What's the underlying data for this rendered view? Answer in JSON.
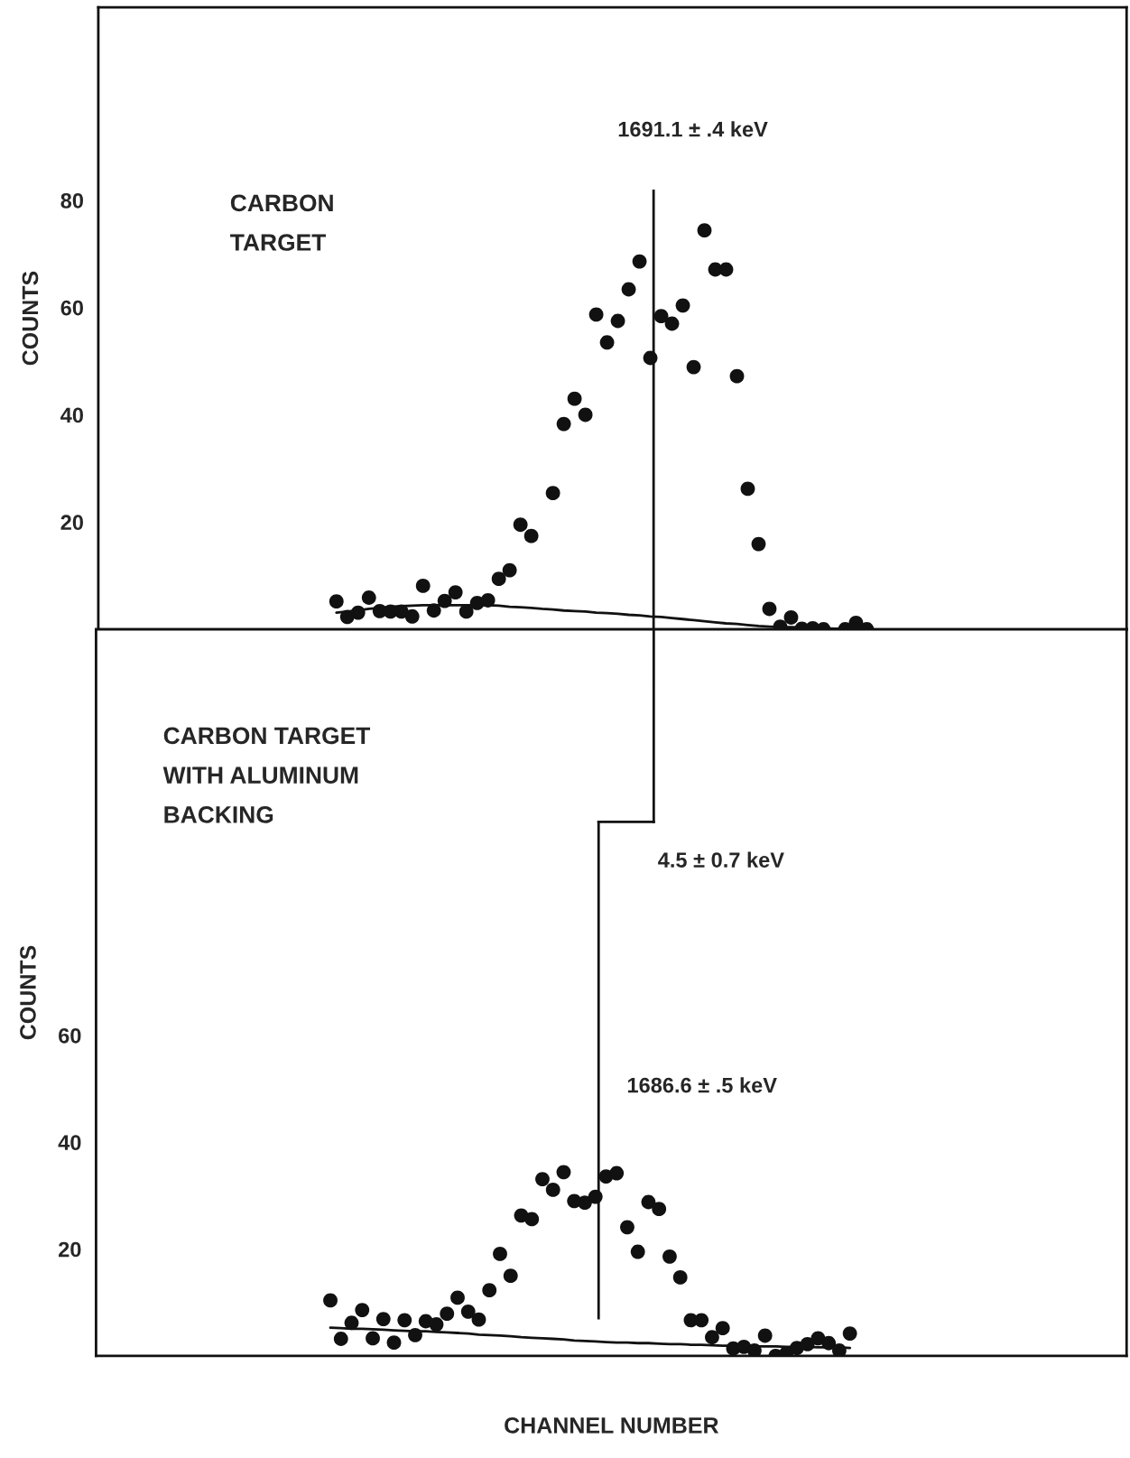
{
  "chart_data": [
    {
      "type": "scatter",
      "title": "CARBON\nTARGET",
      "ylabel": "COUNTS",
      "ylim": [
        0,
        116
      ],
      "yticks": [
        20,
        40,
        60,
        80
      ],
      "marker": "circle",
      "grid": false,
      "categories": [
        null,
        null,
        null,
        null,
        null,
        null,
        null,
        null,
        null,
        null,
        null,
        null,
        null,
        null,
        null,
        null,
        null,
        null,
        null,
        null,
        null,
        null,
        null,
        null,
        null,
        null,
        null,
        null,
        null,
        null,
        null,
        null,
        null,
        null,
        null,
        null,
        null,
        null,
        null,
        null,
        null,
        null,
        null,
        null,
        null,
        null,
        null,
        null,
        null,
        null
      ],
      "series": [
        {
          "color": "#111111",
          "values": [
            5.2,
            2.3,
            3.1,
            5.9,
            3.4,
            3.3,
            3.3,
            2.4,
            8.1,
            3.5,
            5.3,
            6.9,
            3.3,
            4.9,
            5.4,
            9.4,
            11.0,
            19.5,
            17.4,
            null,
            25.4,
            38.3,
            43.0,
            40.0,
            58.7,
            53.5,
            57.5,
            63.4,
            68.6,
            50.6,
            58.4,
            57.0,
            60.4,
            48.9,
            74.4,
            67.1,
            67.1,
            47.2,
            26.2,
            15.9,
            3.8,
            0.5,
            2.2,
            0.1,
            0.2,
            0,
            null,
            0,
            1.2,
            0
          ]
        },
        {
          "type": "line",
          "marker": "none",
          "color": "#111111",
          "values": [
            3.1,
            3.3,
            3.5,
            3.8,
            4.0,
            4.2,
            4.3,
            4.4,
            4.5,
            4.5,
            4.5,
            4.5,
            4.5,
            4.5,
            4.5,
            4.4,
            4.2,
            4.1,
            4.0,
            3.8,
            3.7,
            3.5,
            3.4,
            3.3,
            3.1,
            3.0,
            2.9,
            2.7,
            2.6,
            2.4,
            2.3,
            2.1,
            1.9,
            1.7,
            1.5,
            1.3,
            1.1,
            1.0,
            0.8,
            0.6,
            0.5,
            0.4,
            0.4,
            0.3,
            0.2,
            0.2,
            0.1,
            0.1,
            0,
            0
          ]
        }
      ],
      "annotations": [
        "1691.1 ± .4 keV"
      ]
    },
    {
      "type": "scatter",
      "title": "CARBON TARGET\nWITH ALUMINUM\nBACKING",
      "ylabel": "COUNTS",
      "xlabel": "CHANNEL NUMBER",
      "ylim": [
        0,
        136
      ],
      "yticks": [
        20,
        40,
        60
      ],
      "marker": "circle",
      "grid": false,
      "categories": [
        null,
        null,
        null,
        null,
        null,
        null,
        null,
        null,
        null,
        null,
        null,
        null,
        null,
        null,
        null,
        null,
        null,
        null,
        null,
        null,
        null,
        null,
        null,
        null,
        null,
        null,
        null,
        null,
        null,
        null,
        null,
        null,
        null,
        null,
        null,
        null,
        null,
        null,
        null,
        null,
        null,
        null,
        null,
        null,
        null,
        null,
        null,
        null,
        null,
        null
      ],
      "series": [
        {
          "color": "#111111",
          "values": [
            10.4,
            3.2,
            6.2,
            8.6,
            3.3,
            6.9,
            2.5,
            6.7,
            3.9,
            6.5,
            5.9,
            7.9,
            10.9,
            8.3,
            6.8,
            12.3,
            19.1,
            15.0,
            26.3,
            25.6,
            33.1,
            31.1,
            34.4,
            29.0,
            28.7,
            29.8,
            33.6,
            34.2,
            24.1,
            19.5,
            28.8,
            27.5,
            18.6,
            14.7,
            6.7,
            6.7,
            3.5,
            5.2,
            1.4,
            1.7,
            1.0,
            3.8,
            0,
            0.5,
            1.5,
            2.2,
            3.3,
            2.4,
            1.0,
            4.2
          ]
        },
        {
          "type": "line",
          "marker": "none",
          "color": "#111111",
          "values": [
            5.3,
            5.2,
            5.1,
            5.1,
            5.0,
            4.9,
            4.8,
            4.7,
            4.6,
            4.6,
            4.5,
            4.4,
            4.3,
            4.2,
            4.0,
            3.9,
            3.8,
            3.7,
            3.5,
            3.4,
            3.3,
            3.2,
            3.1,
            2.9,
            2.8,
            2.7,
            2.6,
            2.5,
            2.5,
            2.4,
            2.4,
            2.3,
            2.2,
            2.2,
            2.1,
            2.1,
            2.0,
            1.9,
            1.9,
            1.9,
            1.8,
            1.8,
            1.8,
            1.7,
            1.7,
            1.7,
            1.6,
            1.6,
            1.6,
            1.5
          ]
        }
      ],
      "annotations": [
        "4.5 ± 0.7 keV",
        "1686.6 ± .5 keV"
      ]
    }
  ]
}
